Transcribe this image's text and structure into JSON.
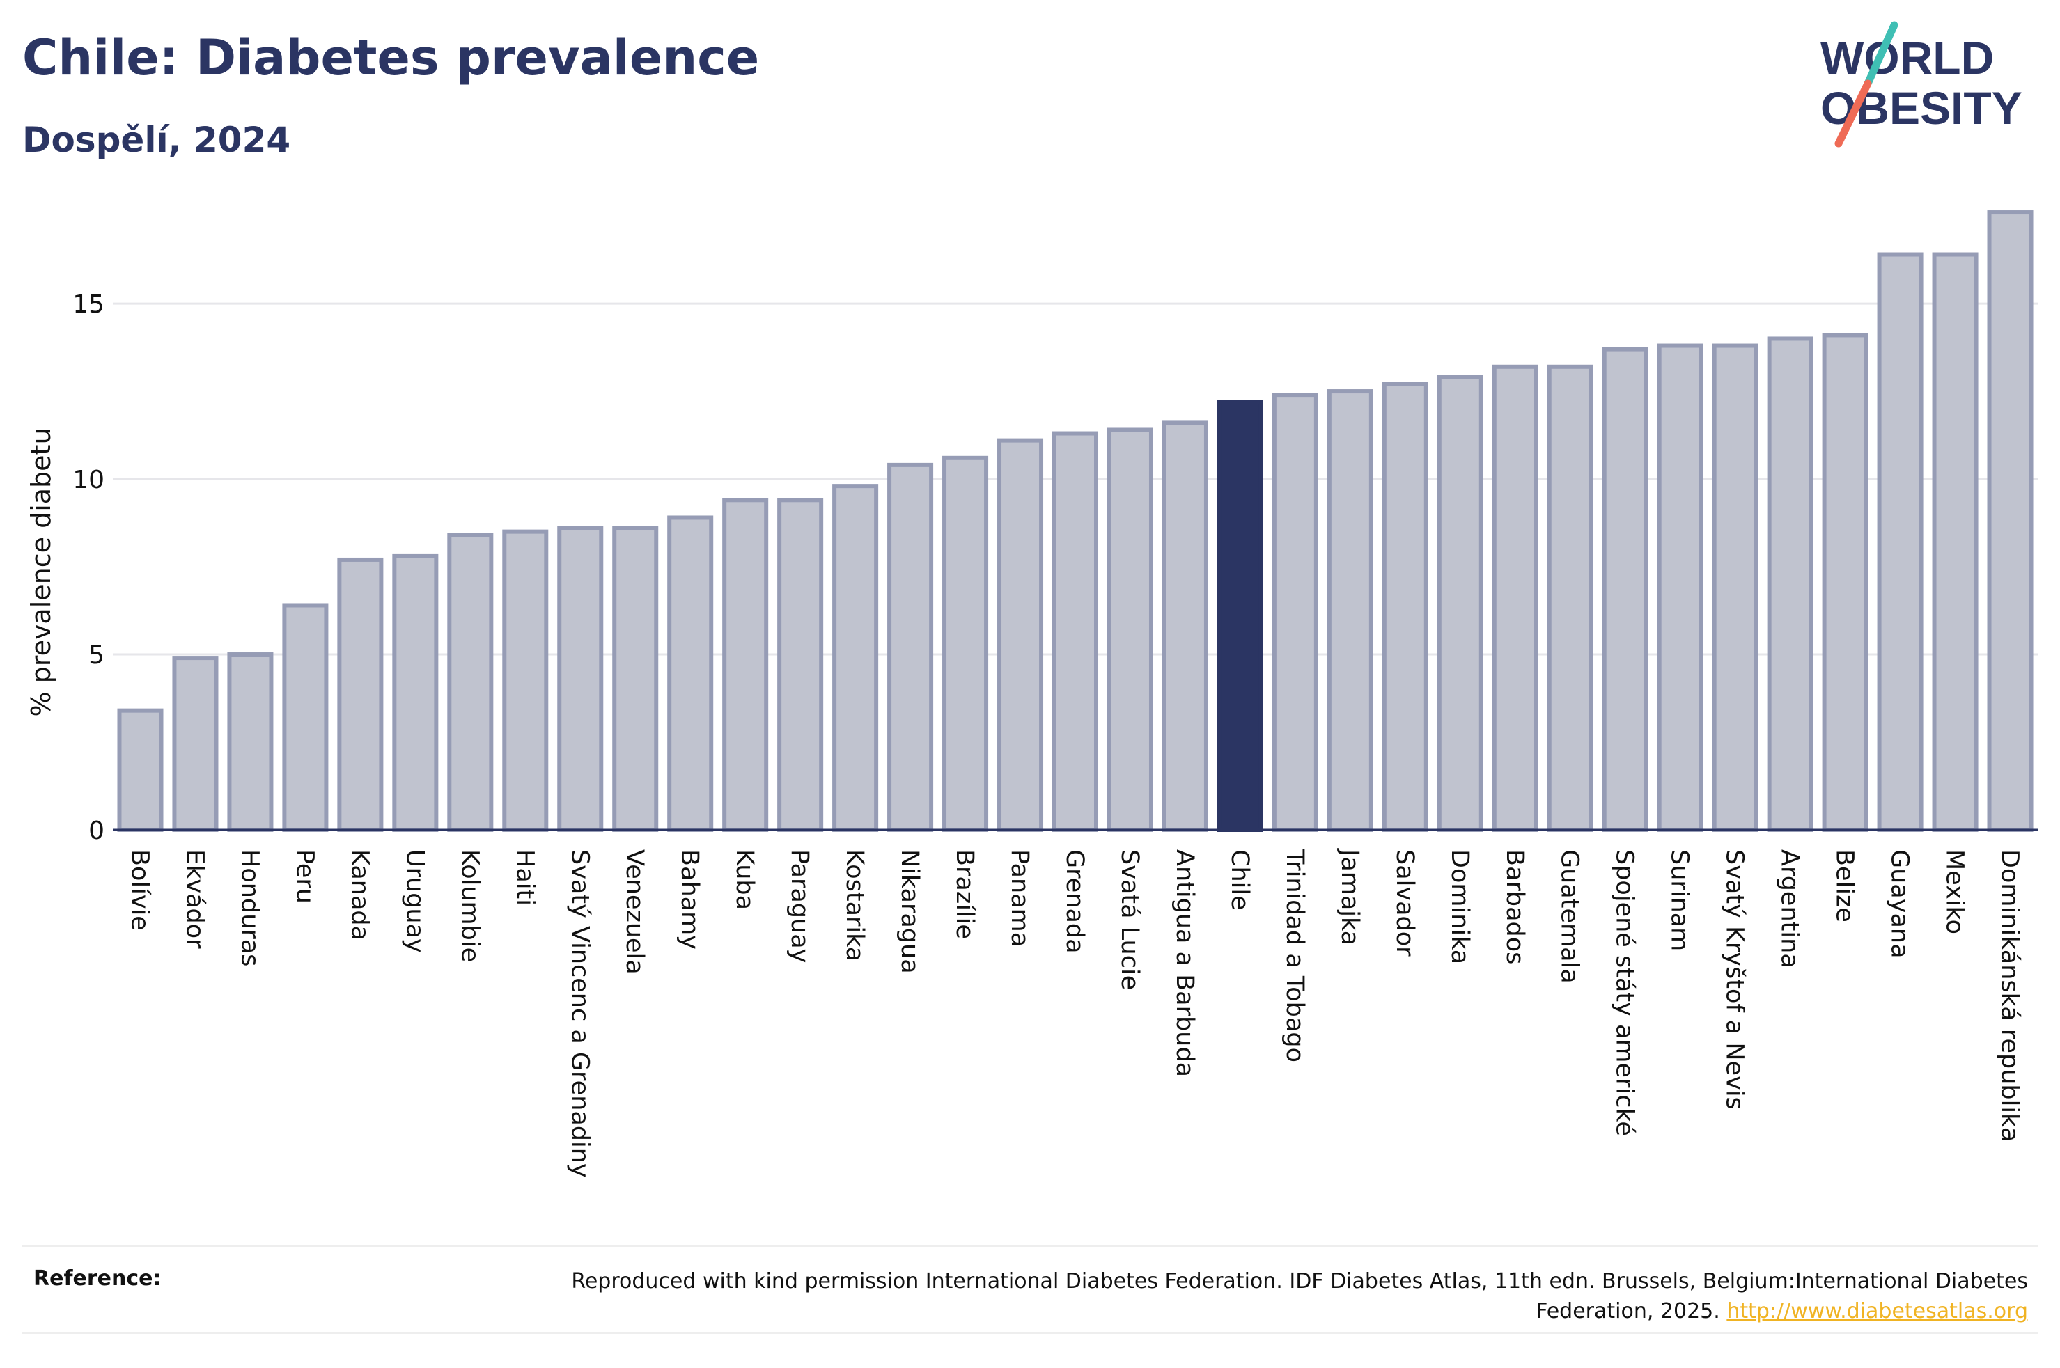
{
  "header": {
    "title": "Chile: Diabetes prevalence",
    "subtitle": "Dospělí, 2024"
  },
  "logo": {
    "line1": "WORLD",
    "line2": "OBESITY",
    "colors": {
      "text": "#2b3563",
      "slash_top": "#3fbfb4",
      "slash_bottom": "#ef6b56"
    }
  },
  "chart_data": {
    "type": "bar",
    "title": "Chile: Diabetes prevalence",
    "subtitle": "Dospělí, 2024",
    "xlabel": "",
    "ylabel": "% prevalence diabetu",
    "ylim": [
      0,
      17.7
    ],
    "yticks": [
      0,
      5,
      10,
      15
    ],
    "grid": true,
    "legend": "none",
    "highlight": "Chile",
    "colors": {
      "bar": "#c0c3cf",
      "bar_border": "#969cb5",
      "highlight": "#2b3563",
      "grid": "#e6e6ea",
      "axis": "#2b3563"
    },
    "categories": [
      "Bolívie",
      "Ekvádor",
      "Honduras",
      "Peru",
      "Kanada",
      "Uruguay",
      "Kolumbie",
      "Haiti",
      "Svatý Vincenc a Grenadiny",
      "Venezuela",
      "Bahamy",
      "Kuba",
      "Paraguay",
      "Kostarika",
      "Nikaragua",
      "Brazílie",
      "Panama",
      "Grenada",
      "Svatá Lucie",
      "Antigua a Barbuda",
      "Chile",
      "Trinidad a Tobago",
      "Jamajka",
      "Salvador",
      "Dominika",
      "Barbados",
      "Guatemala",
      "Spojené státy americké",
      "Surinam",
      "Svatý Kryštof a Nevis",
      "Argentina",
      "Belize",
      "Guayana",
      "Mexiko",
      "Dominikánská republika"
    ],
    "values": [
      3.4,
      4.9,
      5.0,
      6.4,
      7.7,
      7.8,
      8.4,
      8.5,
      8.6,
      8.6,
      8.9,
      9.4,
      9.4,
      9.8,
      10.4,
      10.6,
      11.1,
      11.3,
      11.4,
      11.6,
      12.2,
      12.4,
      12.5,
      12.7,
      12.9,
      13.2,
      13.2,
      13.7,
      13.8,
      13.8,
      14.0,
      14.1,
      16.4,
      16.4,
      17.6
    ]
  },
  "footer": {
    "reference_label": "Reference:",
    "reference_text": "Reproduced with kind permission International Diabetes Federation. IDF Diabetes Atlas, 11th edn. Brussels, Belgium:International Diabetes Federation, 2025. ",
    "reference_link": "http://www.diabetesatlas.org"
  }
}
